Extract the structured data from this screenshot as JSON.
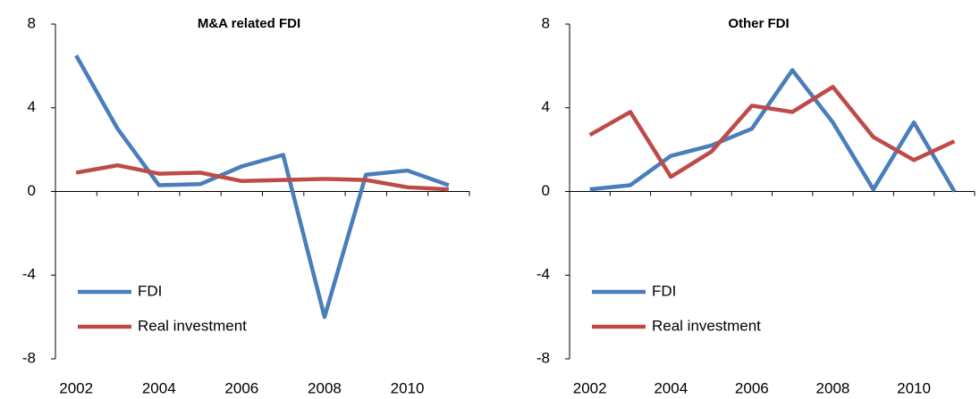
{
  "chart_data": [
    {
      "type": "line",
      "title": "M&A related FDI",
      "categories": [
        "2002",
        null,
        "2004",
        null,
        "2006",
        null,
        "2008",
        null,
        "2010",
        null
      ],
      "series": [
        {
          "name": "FDI",
          "color": "#4a7ebb",
          "values": [
            6.5,
            3.0,
            0.3,
            0.35,
            1.2,
            1.75,
            -6.0,
            0.8,
            1.0,
            0.3
          ]
        },
        {
          "name": "Real investment",
          "color": "#be4b48",
          "values": [
            0.9,
            1.25,
            0.85,
            0.9,
            0.5,
            0.55,
            0.6,
            0.55,
            0.2,
            0.1
          ]
        }
      ],
      "ylim": [
        -8,
        8
      ],
      "yticks": [
        -8,
        -4,
        0,
        4,
        8
      ],
      "legend": "lower-left"
    },
    {
      "type": "line",
      "title": "Other FDI",
      "categories": [
        "2002",
        null,
        "2004",
        null,
        "2006",
        null,
        "2008",
        null,
        "2010",
        null
      ],
      "series": [
        {
          "name": "FDI",
          "color": "#4a7ebb",
          "values": [
            0.1,
            0.3,
            1.7,
            2.2,
            3.0,
            5.8,
            3.3,
            0.1,
            3.3,
            0.0
          ]
        },
        {
          "name": "Real investment",
          "color": "#be4b48",
          "values": [
            2.7,
            3.8,
            0.7,
            1.9,
            4.1,
            3.8,
            5.0,
            2.6,
            1.5,
            2.4
          ]
        }
      ],
      "ylim": [
        -8,
        8
      ],
      "yticks": [
        -8,
        -4,
        0,
        4,
        8
      ],
      "legend": "lower-left"
    }
  ]
}
